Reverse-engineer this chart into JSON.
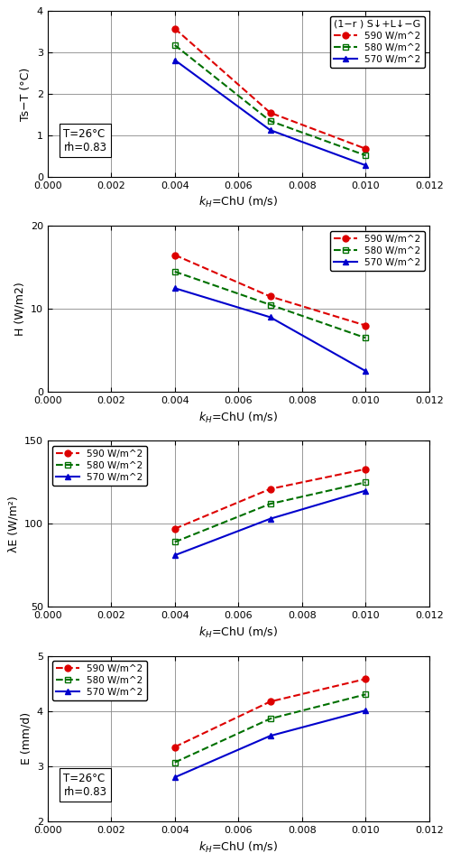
{
  "x": [
    0.004,
    0.007,
    0.01
  ],
  "plot1": {
    "ylabel": "Ts−T (°C)",
    "xlabel": "$k_H$=ChU (m/s)",
    "ylim": [
      0,
      4
    ],
    "yticks": [
      0,
      1,
      2,
      3,
      4
    ],
    "annotation": "T=26°C\nrh=0.83",
    "legend_title": "(1−r ) S↓+L↓−G",
    "legend_loc": "upper right",
    "series": {
      "590": [
        3.58,
        1.55,
        0.68
      ],
      "580": [
        3.18,
        1.35,
        0.52
      ],
      "570": [
        2.82,
        1.13,
        0.28
      ]
    }
  },
  "plot2": {
    "ylabel": "H (W/m2)",
    "xlabel": "$k_H$=ChU (m/s)",
    "ylim": [
      0,
      20
    ],
    "yticks": [
      0,
      10,
      20
    ],
    "legend_loc": "upper right",
    "series": {
      "590": [
        16.5,
        11.5,
        8.0
      ],
      "580": [
        14.5,
        10.5,
        6.5
      ],
      "570": [
        12.5,
        9.0,
        2.5
      ]
    }
  },
  "plot3": {
    "ylabel": "λE (W/m²)",
    "xlabel": "$k_H$=ChU (m/s)",
    "ylim": [
      50,
      150
    ],
    "yticks": [
      50,
      100,
      150
    ],
    "legend_loc": "upper left",
    "series": {
      "590": [
        97,
        121,
        133
      ],
      "580": [
        89,
        112,
        125
      ],
      "570": [
        81,
        103,
        120
      ]
    }
  },
  "plot4": {
    "ylabel": "E (mm/d)",
    "xlabel": "$k_H$=ChU (m/s)",
    "ylim": [
      2,
      5
    ],
    "yticks": [
      2,
      3,
      4,
      5
    ],
    "annotation": "T=26°C\nrh=0.83",
    "legend_loc": "upper left",
    "series": {
      "590": [
        3.35,
        4.17,
        4.58
      ],
      "580": [
        3.07,
        3.86,
        4.3
      ],
      "570": [
        2.8,
        3.55,
        4.01
      ]
    }
  },
  "colors": {
    "590": "#dd0000",
    "580": "#007000",
    "570": "#0000cc"
  },
  "linestyles": {
    "590": "--",
    "580": "--",
    "570": "-"
  },
  "markers": {
    "590": "o",
    "580": "s",
    "570": "^"
  },
  "marker_filled": {
    "590": false,
    "580": false,
    "570": false
  },
  "labels": {
    "590": "590 W/m^2",
    "580": "580 W/m^2",
    "570": "570 W/m^2"
  },
  "xlim": [
    0.0,
    0.012
  ],
  "xticks": [
    0.0,
    0.002,
    0.004,
    0.006,
    0.008,
    0.01,
    0.012
  ]
}
